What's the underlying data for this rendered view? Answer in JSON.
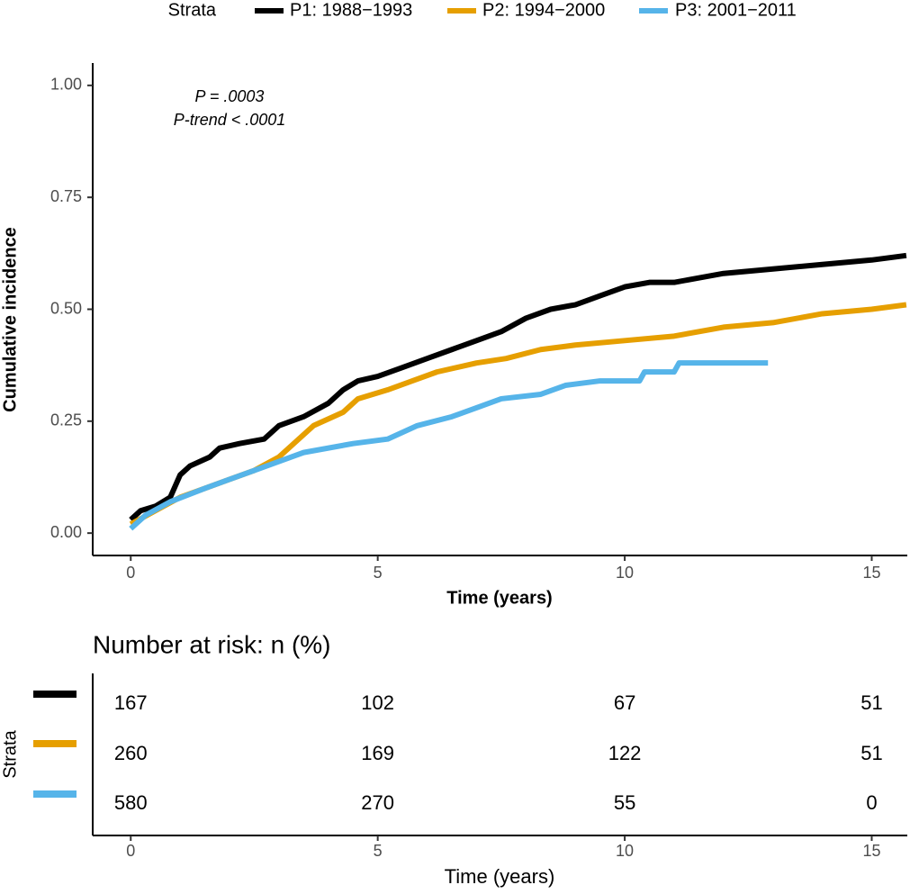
{
  "chart_data": {
    "type": "line",
    "legend_title": "Strata",
    "y_label": "Cumulative incidence",
    "x_label": "Time (years)",
    "annotations": [
      "P = .0003",
      "P-trend < .0001"
    ],
    "xlim": [
      -0.77,
      15.72
    ],
    "ylim": [
      -0.05,
      1.05
    ],
    "xticks": [
      0,
      5,
      10,
      15
    ],
    "yticks": [
      {
        "value": 0,
        "label": "0.00"
      },
      {
        "value": 0.25,
        "label": "0.25"
      },
      {
        "value": 0.5,
        "label": "0.50"
      },
      {
        "value": 0.75,
        "label": "0.75"
      },
      {
        "value": 1,
        "label": "1.00"
      }
    ],
    "series": [
      {
        "name": "P1: 1988−1993",
        "color": "#000000",
        "x": [
          0,
          0.2,
          0.5,
          0.8,
          1.0,
          1.2,
          1.6,
          1.8,
          2.2,
          2.7,
          3.0,
          3.5,
          4.0,
          4.3,
          4.6,
          5.0,
          5.5,
          6.0,
          6.5,
          7.0,
          7.5,
          8.0,
          8.5,
          9.0,
          9.5,
          10,
          10.5,
          11,
          11.5,
          12,
          13,
          14,
          15,
          15.7
        ],
        "values": [
          0.03,
          0.05,
          0.06,
          0.08,
          0.13,
          0.15,
          0.17,
          0.19,
          0.2,
          0.21,
          0.24,
          0.26,
          0.29,
          0.32,
          0.34,
          0.35,
          0.37,
          0.39,
          0.41,
          0.43,
          0.45,
          0.48,
          0.5,
          0.51,
          0.53,
          0.55,
          0.56,
          0.56,
          0.57,
          0.58,
          0.59,
          0.6,
          0.61,
          0.62
        ]
      },
      {
        "name": "P2: 1994−2000",
        "color": "#E69F00",
        "x": [
          0,
          0.5,
          1,
          1.5,
          2,
          2.5,
          3,
          3.3,
          3.7,
          4.3,
          4.6,
          5.2,
          5.7,
          6.2,
          7,
          7.6,
          8.3,
          9,
          10,
          11,
          12,
          13,
          14,
          15,
          15.7
        ],
        "values": [
          0.02,
          0.05,
          0.08,
          0.1,
          0.12,
          0.14,
          0.17,
          0.2,
          0.24,
          0.27,
          0.3,
          0.32,
          0.34,
          0.36,
          0.38,
          0.39,
          0.41,
          0.42,
          0.43,
          0.44,
          0.46,
          0.47,
          0.49,
          0.5,
          0.51
        ]
      },
      {
        "name": "P3: 2001−2011",
        "color": "#56B4E9",
        "x": [
          0,
          0.3,
          0.8,
          1.5,
          2.5,
          3.5,
          4.5,
          5.2,
          5.8,
          6.5,
          7,
          7.5,
          8.3,
          8.8,
          9.5,
          10.3,
          10.4,
          11,
          11.1,
          12,
          12.9
        ],
        "values": [
          0.01,
          0.04,
          0.07,
          0.1,
          0.14,
          0.18,
          0.2,
          0.21,
          0.24,
          0.26,
          0.28,
          0.3,
          0.31,
          0.33,
          0.34,
          0.34,
          0.36,
          0.36,
          0.38,
          0.38,
          0.38
        ]
      }
    ],
    "risk_table": {
      "title": "Number at risk: n (%)",
      "counts": [
        [
          "167",
          "102",
          "67",
          "51"
        ],
        [
          "260",
          "169",
          "122",
          "51"
        ],
        [
          "580",
          "270",
          "55",
          "0"
        ]
      ]
    }
  }
}
